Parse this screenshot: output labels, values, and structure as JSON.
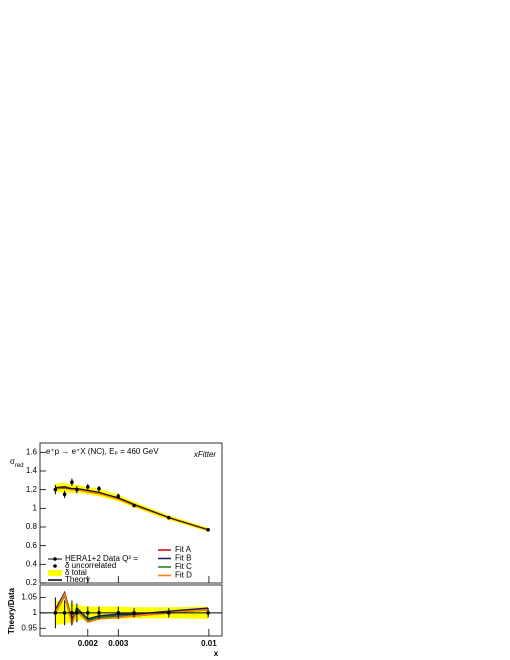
{
  "chart_data": [
    {
      "type": "line",
      "title": "e⁺p → e⁺X (NC), Eₚ = 460 GeV",
      "y_label": {
        "main": "σ",
        "sub": "red"
      },
      "logo": "xFitter",
      "x": [
        0.0013,
        0.00147,
        0.00162,
        0.00173,
        0.002,
        0.00232,
        0.003,
        0.0037,
        0.00587,
        0.0099
      ],
      "xlim": [
        0.00106,
        0.0119
      ],
      "xticks": [
        0.002,
        0.003,
        0.01
      ],
      "log_x": true,
      "ylim": [
        0.2,
        1.7
      ],
      "yticks": [
        0.2,
        0.4,
        0.6,
        0.8,
        1,
        1.2,
        1.4,
        1.6
      ],
      "data": {
        "name": "HERA1+2 Data Q² =",
        "color": "#000000",
        "values": [
          1.2,
          1.15,
          1.28,
          1.2,
          1.23,
          1.21,
          1.13,
          1.03,
          0.9,
          0.77
        ],
        "errors": [
          0.05,
          0.04,
          0.04,
          0.04,
          0.03,
          0.03,
          0.03,
          0.02,
          0.02,
          0.015
        ]
      },
      "uncorrelated_name": "δ uncorrelated",
      "total": {
        "name": "δ total",
        "color": "#ffff00",
        "errors": [
          0.05,
          0.05,
          0.05,
          0.04,
          0.04,
          0.04,
          0.035,
          0.03,
          0.025,
          0.02
        ]
      },
      "theory": {
        "name": "Theory",
        "color": "#000000",
        "values": [
          1.22,
          1.22,
          1.21,
          1.21,
          1.19,
          1.17,
          1.11,
          1.04,
          0.9,
          0.77
        ]
      },
      "series": [
        {
          "name": "Fit A",
          "color": "#cc0000",
          "values": [
            1.21,
            1.22,
            1.2,
            1.21,
            1.18,
            1.16,
            1.11,
            1.04,
            0.9,
            0.77
          ]
        },
        {
          "name": "Fit B",
          "color": "#1a1a66",
          "values": [
            1.22,
            1.23,
            1.21,
            1.21,
            1.19,
            1.17,
            1.11,
            1.04,
            0.9,
            0.77
          ]
        },
        {
          "name": "Fit C",
          "color": "#1a7a1a",
          "values": [
            1.22,
            1.22,
            1.2,
            1.21,
            1.18,
            1.16,
            1.1,
            1.04,
            0.9,
            0.77
          ]
        },
        {
          "name": "Fit D",
          "color": "#ff7f00",
          "values": [
            1.21,
            1.22,
            1.2,
            1.2,
            1.18,
            1.16,
            1.1,
            1.03,
            0.9,
            0.77
          ]
        }
      ]
    },
    {
      "type": "ratio",
      "y_label": "Theory/Data",
      "x_label": "x",
      "ylim": [
        0.925,
        1.09
      ],
      "yticks": [
        0.95,
        1,
        1.05
      ],
      "reference": 1,
      "data_values": [
        1,
        1,
        1,
        1,
        1,
        1,
        1,
        1,
        1,
        1
      ],
      "data_errors": [
        0.05,
        0.04,
        0.04,
        0.03,
        0.02,
        0.02,
        0.02,
        0.015,
        0.015,
        0.015
      ],
      "total_errors": [
        0.04,
        0.035,
        0.03,
        0.025,
        0.02,
        0.02,
        0.02,
        0.018,
        0.018,
        0.02
      ],
      "series": [
        {
          "name": "Fit A",
          "color": "#cc0000",
          "values": [
            1.0,
            1.06,
            0.97,
            1.01,
            0.975,
            0.985,
            0.99,
            0.99,
            1.0,
            1.01
          ]
        },
        {
          "name": "Fit B",
          "color": "#1a1a66",
          "values": [
            1.01,
            1.065,
            0.975,
            1.015,
            0.98,
            0.99,
            0.995,
            0.995,
            1.005,
            1.015
          ]
        },
        {
          "name": "Fit C",
          "color": "#1a7a1a",
          "values": [
            1.0,
            1.055,
            0.97,
            1.01,
            0.975,
            0.985,
            0.99,
            0.99,
            1.0,
            1.01
          ]
        },
        {
          "name": "Fit D",
          "color": "#ff7f00",
          "values": [
            1.0,
            1.06,
            0.965,
            1.005,
            0.97,
            0.98,
            0.985,
            0.99,
            1.0,
            1.01
          ]
        }
      ]
    }
  ]
}
